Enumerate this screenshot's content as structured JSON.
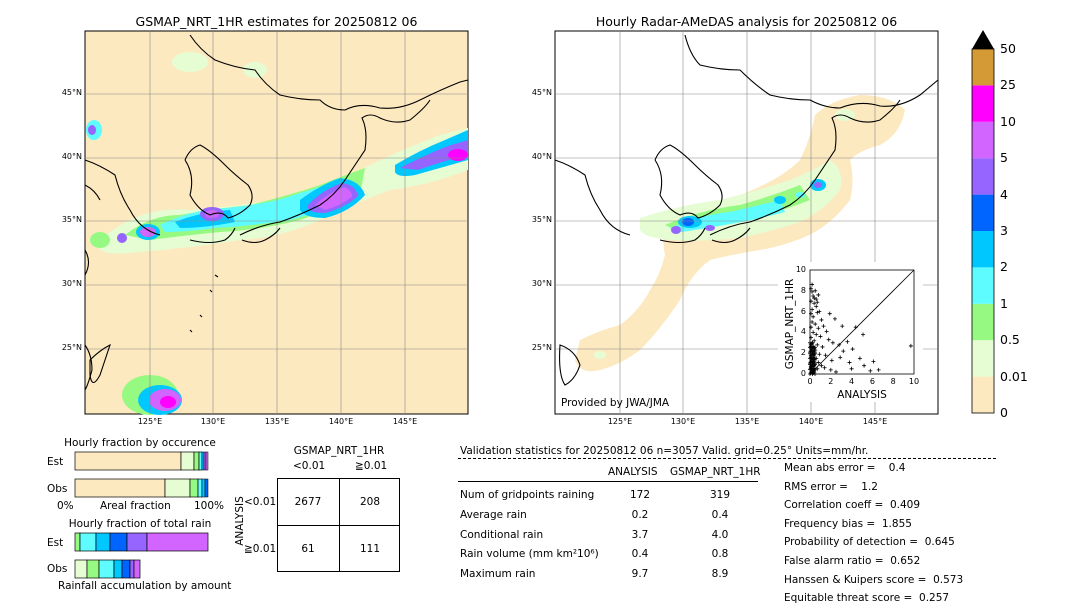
{
  "left_map": {
    "title": "GSMAP_NRT_1HR estimates for 20250812 06",
    "lat_ticks": [
      "45°N",
      "40°N",
      "35°N",
      "30°N",
      "25°N"
    ],
    "lon_ticks": [
      "125°E",
      "130°E",
      "135°E",
      "140°E",
      "145°E"
    ]
  },
  "right_map": {
    "title": "Hourly Radar-AMeDAS analysis for 20250812 06",
    "credit": "Provided by JWA/JMA",
    "lat_ticks": [
      "45°N",
      "40°N",
      "35°N",
      "30°N",
      "25°N"
    ],
    "lon_ticks": [
      "125°E",
      "130°E",
      "135°E",
      "140°E",
      "145°E"
    ]
  },
  "colorbar": {
    "levels": [
      "0",
      "0.01",
      "0.5",
      "1",
      "2",
      "3",
      "4",
      "5",
      "10",
      "25",
      "50"
    ],
    "colors": [
      "#fde9c0",
      "#e6fcd2",
      "#96fa82",
      "#5efcff",
      "#00c8ff",
      "#0064ff",
      "#9664ff",
      "#d264ff",
      "#ff00ff",
      "#d49a36",
      "#000000"
    ]
  },
  "fraction_occurrence": {
    "title": "Hourly fraction by occurence",
    "row_est": "Est",
    "row_obs": "Obs",
    "axis_left": "0%",
    "axis_mid": "Areal fraction",
    "axis_right": "100%"
  },
  "fraction_total": {
    "title": "Hourly fraction of total rain",
    "row_est": "Est",
    "row_obs": "Obs",
    "caption": "Rainfall accumulation by amount"
  },
  "contingency": {
    "title": "GSMAP_NRT_1HR",
    "col_lt": "<0.01",
    "col_ge": "≧0.01",
    "row_axis": "ANALYSIS",
    "row_lt": "<0.01",
    "row_ge": "≧0.01",
    "cells": [
      "2677",
      "208",
      "61",
      "111"
    ]
  },
  "validation": {
    "header": "Validation statistics for 20250812 06  n=3057 Valid. grid=0.25° Units=mm/hr.",
    "col_analysis": "ANALYSIS",
    "col_gsmap": "GSMAP_NRT_1HR",
    "rows": [
      {
        "label": "Num of gridpoints raining",
        "analysis": "172",
        "gsmap": "319"
      },
      {
        "label": "Average rain",
        "analysis": "0.2",
        "gsmap": "0.4"
      },
      {
        "label": "Conditional rain",
        "analysis": "3.7",
        "gsmap": "4.0"
      },
      {
        "label": "Rain volume (mm km²10⁶)",
        "analysis": "0.4",
        "gsmap": "0.8"
      },
      {
        "label": "Maximum rain",
        "analysis": "9.7",
        "gsmap": "8.9"
      }
    ],
    "scores": [
      "Mean abs error =    0.4",
      "RMS error =    1.2",
      "Correlation coeff =  0.409",
      "Frequency bias =  1.855",
      "Probability of detection =  0.645",
      "False alarm ratio =  0.652",
      "Hanssen & Kuipers score =  0.573",
      "Equitable threat score =  0.257"
    ]
  },
  "chart_data": {
    "type": "scatter",
    "xlabel": "ANALYSIS",
    "ylabel": "GSMAP_NRT_1HR",
    "xlim": [
      0,
      10
    ],
    "ylim": [
      0,
      10
    ],
    "x_ticks": [
      "0",
      "2",
      "4",
      "6",
      "8",
      "10"
    ],
    "y_ticks": [
      "0",
      "2",
      "4",
      "6",
      "8",
      "10"
    ],
    "points": [
      [
        0.1,
        8.2
      ],
      [
        0.2,
        7.9
      ],
      [
        0.3,
        7.5
      ],
      [
        0.5,
        8.0
      ],
      [
        0.1,
        7.0
      ],
      [
        0.4,
        6.8
      ],
      [
        0.2,
        6.2
      ],
      [
        0.6,
        6.5
      ],
      [
        0.1,
        5.8
      ],
      [
        0.3,
        5.5
      ],
      [
        0.7,
        5.9
      ],
      [
        0.2,
        5.0
      ],
      [
        0.5,
        4.8
      ],
      [
        0.1,
        4.5
      ],
      [
        0.8,
        4.4
      ],
      [
        0.3,
        4.0
      ],
      [
        0.6,
        3.8
      ],
      [
        0.1,
        3.5
      ],
      [
        0.4,
        3.2
      ],
      [
        1.0,
        3.6
      ],
      [
        0.2,
        3.0
      ],
      [
        0.7,
        2.8
      ],
      [
        0.1,
        2.5
      ],
      [
        0.5,
        2.3
      ],
      [
        1.2,
        2.6
      ],
      [
        0.3,
        2.0
      ],
      [
        0.9,
        1.9
      ],
      [
        0.1,
        1.6
      ],
      [
        0.6,
        1.5
      ],
      [
        1.5,
        1.8
      ],
      [
        0.2,
        1.2
      ],
      [
        0.8,
        1.1
      ],
      [
        0.4,
        0.9
      ],
      [
        1.1,
        0.8
      ],
      [
        0.1,
        0.6
      ],
      [
        0.7,
        0.5
      ],
      [
        1.4,
        0.6
      ],
      [
        0.3,
        0.3
      ],
      [
        2.0,
        0.4
      ],
      [
        2.5,
        0.2
      ],
      [
        0.9,
        6.0
      ],
      [
        1.1,
        5.2
      ],
      [
        1.3,
        4.6
      ],
      [
        0.6,
        7.2
      ],
      [
        0.8,
        7.6
      ],
      [
        1.6,
        4.1
      ],
      [
        1.8,
        3.3
      ],
      [
        2.2,
        3.0
      ],
      [
        2.8,
        2.8
      ],
      [
        3.2,
        2.2
      ],
      [
        3.6,
        3.1
      ],
      [
        4.1,
        2.4
      ],
      [
        4.4,
        4.5
      ],
      [
        3.1,
        4.6
      ],
      [
        2.4,
        5.3
      ],
      [
        1.9,
        5.8
      ],
      [
        5.1,
        3.8
      ],
      [
        4.0,
        0.5
      ],
      [
        5.2,
        0.8
      ],
      [
        5.8,
        0.3
      ],
      [
        6.1,
        1.2
      ],
      [
        6.6,
        0.4
      ],
      [
        4.8,
        1.5
      ],
      [
        3.8,
        1.1
      ],
      [
        2.9,
        1.6
      ],
      [
        2.1,
        1.3
      ],
      [
        9.7,
        2.7
      ],
      [
        0.2,
        8.6
      ],
      [
        0.4,
        7.3
      ],
      [
        0.7,
        6.9
      ]
    ]
  }
}
